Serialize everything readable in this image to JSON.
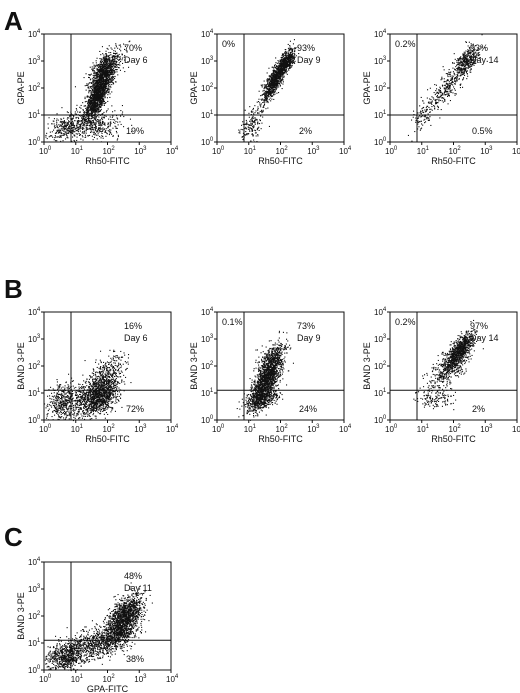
{
  "panels": [
    {
      "letter": "A",
      "y": 12
    },
    {
      "letter": "B",
      "y": 280
    },
    {
      "letter": "C",
      "y": 528
    }
  ],
  "chart_data": [
    {
      "type": "scatter",
      "panel": "A",
      "xlabel": "Rh50-FITC",
      "ylabel": "GPA-PE",
      "xlim_log10": [
        0,
        4
      ],
      "ylim_log10": [
        0,
        4
      ],
      "gate": {
        "x_log10": 0.85,
        "y_log10": 1.0
      },
      "quadrant_labels": {
        "upper_left": "",
        "upper_right": "70%",
        "lower_right": "19%"
      },
      "annotation": "Day 6",
      "clusters": [
        {
          "cx": 1.7,
          "cy": 1.8,
          "sx": 0.22,
          "sy": 0.55,
          "rho": 0.75,
          "n": 1500
        },
        {
          "cx": 1.9,
          "cy": 2.7,
          "sx": 0.25,
          "sy": 0.35,
          "rho": 0.6,
          "n": 700
        },
        {
          "cx": 0.75,
          "cy": 0.6,
          "sx": 0.3,
          "sy": 0.25,
          "rho": 0.3,
          "n": 350
        },
        {
          "cx": 1.8,
          "cy": 0.6,
          "sx": 0.35,
          "sy": 0.3,
          "rho": 0.2,
          "n": 250
        }
      ]
    },
    {
      "type": "scatter",
      "panel": "A",
      "xlabel": "Rh50-FITC",
      "ylabel": "GPA-PE",
      "xlim_log10": [
        0,
        4
      ],
      "ylim_log10": [
        0,
        4
      ],
      "gate": {
        "x_log10": 0.85,
        "y_log10": 1.0
      },
      "quadrant_labels": {
        "upper_left": "0%",
        "upper_right": "93%",
        "lower_right": "2%"
      },
      "annotation": "Day 9",
      "clusters": [
        {
          "cx": 1.85,
          "cy": 2.4,
          "sx": 0.22,
          "sy": 0.45,
          "rho": 0.85,
          "n": 1000
        },
        {
          "cx": 2.2,
          "cy": 3.0,
          "sx": 0.12,
          "sy": 0.2,
          "rho": 0.5,
          "n": 350
        },
        {
          "cx": 1.05,
          "cy": 0.6,
          "sx": 0.2,
          "sy": 0.3,
          "rho": 0.3,
          "n": 150
        }
      ]
    },
    {
      "type": "scatter",
      "panel": "A",
      "xlabel": "Rh50-FITC",
      "ylabel": "GPA-PE",
      "xlim_log10": [
        0,
        4
      ],
      "ylim_log10": [
        0,
        4
      ],
      "gate": {
        "x_log10": 0.85,
        "y_log10": 1.0
      },
      "quadrant_labels": {
        "upper_left": "0.2%",
        "upper_right": "93%",
        "lower_right": "0.5%"
      },
      "annotation": "Day 14",
      "clusters": [
        {
          "cx": 2.4,
          "cy": 3.0,
          "sx": 0.2,
          "sy": 0.3,
          "rho": 0.6,
          "n": 380
        },
        {
          "cx": 1.75,
          "cy": 2.0,
          "sx": 0.35,
          "sy": 0.45,
          "rho": 0.8,
          "n": 300
        },
        {
          "cx": 1.0,
          "cy": 0.9,
          "sx": 0.15,
          "sy": 0.25,
          "rho": 0.3,
          "n": 70
        }
      ]
    },
    {
      "type": "scatter",
      "panel": "B",
      "xlabel": "Rh50-FITC",
      "ylabel": "BAND 3-PE",
      "xlim_log10": [
        0,
        4
      ],
      "ylim_log10": [
        0,
        4
      ],
      "gate": {
        "x_log10": 0.85,
        "y_log10": 1.1
      },
      "quadrant_labels": {
        "upper_left": "",
        "upper_right": "16%",
        "lower_right": "72%"
      },
      "annotation": "Day 6",
      "clusters": [
        {
          "cx": 1.7,
          "cy": 0.9,
          "sx": 0.3,
          "sy": 0.35,
          "rho": 0.4,
          "n": 1100
        },
        {
          "cx": 1.9,
          "cy": 1.6,
          "sx": 0.3,
          "sy": 0.4,
          "rho": 0.5,
          "n": 400
        },
        {
          "cx": 0.65,
          "cy": 0.7,
          "sx": 0.3,
          "sy": 0.35,
          "rho": 0.2,
          "n": 500
        }
      ]
    },
    {
      "type": "scatter",
      "panel": "B",
      "xlabel": "Rh50-FITC",
      "ylabel": "BAND 3-PE",
      "xlim_log10": [
        0,
        4
      ],
      "ylim_log10": [
        0,
        4
      ],
      "gate": {
        "x_log10": 0.85,
        "y_log10": 1.1
      },
      "quadrant_labels": {
        "upper_left": "0.1%",
        "upper_right": "73%",
        "lower_right": "24%"
      },
      "annotation": "Day 9",
      "clusters": [
        {
          "cx": 1.55,
          "cy": 1.5,
          "sx": 0.25,
          "sy": 0.5,
          "rho": 0.7,
          "n": 1300
        },
        {
          "cx": 1.7,
          "cy": 2.3,
          "sx": 0.2,
          "sy": 0.3,
          "rho": 0.5,
          "n": 300
        },
        {
          "cx": 1.4,
          "cy": 0.8,
          "sx": 0.25,
          "sy": 0.2,
          "rho": 0.3,
          "n": 400
        }
      ]
    },
    {
      "type": "scatter",
      "panel": "B",
      "xlabel": "Rh50-FITC",
      "ylabel": "BAND 3-PE",
      "xlim_log10": [
        0,
        4
      ],
      "ylim_log10": [
        0,
        4
      ],
      "gate": {
        "x_log10": 0.85,
        "y_log10": 1.1
      },
      "quadrant_labels": {
        "upper_left": "0.2%",
        "upper_right": "97%",
        "lower_right": "2%"
      },
      "annotation": "Day 14",
      "clusters": [
        {
          "cx": 2.2,
          "cy": 2.6,
          "sx": 0.22,
          "sy": 0.35,
          "rho": 0.75,
          "n": 800
        },
        {
          "cx": 1.8,
          "cy": 1.9,
          "sx": 0.3,
          "sy": 0.4,
          "rho": 0.6,
          "n": 400
        },
        {
          "cx": 1.4,
          "cy": 0.8,
          "sx": 0.3,
          "sy": 0.2,
          "rho": 0.2,
          "n": 120
        }
      ]
    },
    {
      "type": "scatter",
      "panel": "C",
      "xlabel": "GPA-FITC",
      "ylabel": "BAND 3-PE",
      "xlim_log10": [
        0,
        4
      ],
      "ylim_log10": [
        0,
        4
      ],
      "gate": {
        "x_log10": 0.85,
        "y_log10": 1.1
      },
      "quadrant_labels": {
        "upper_left": "",
        "upper_right": "48%",
        "lower_right": "38%"
      },
      "annotation": "Day 11",
      "clusters": [
        {
          "cx": 2.45,
          "cy": 1.7,
          "sx": 0.3,
          "sy": 0.4,
          "rho": 0.5,
          "n": 1100
        },
        {
          "cx": 1.6,
          "cy": 1.0,
          "sx": 0.5,
          "sy": 0.3,
          "rho": 0.4,
          "n": 700
        },
        {
          "cx": 0.65,
          "cy": 0.5,
          "sx": 0.3,
          "sy": 0.25,
          "rho": 0.2,
          "n": 600
        },
        {
          "cx": 2.6,
          "cy": 2.3,
          "sx": 0.25,
          "sy": 0.3,
          "rho": 0.5,
          "n": 400
        }
      ]
    }
  ]
}
